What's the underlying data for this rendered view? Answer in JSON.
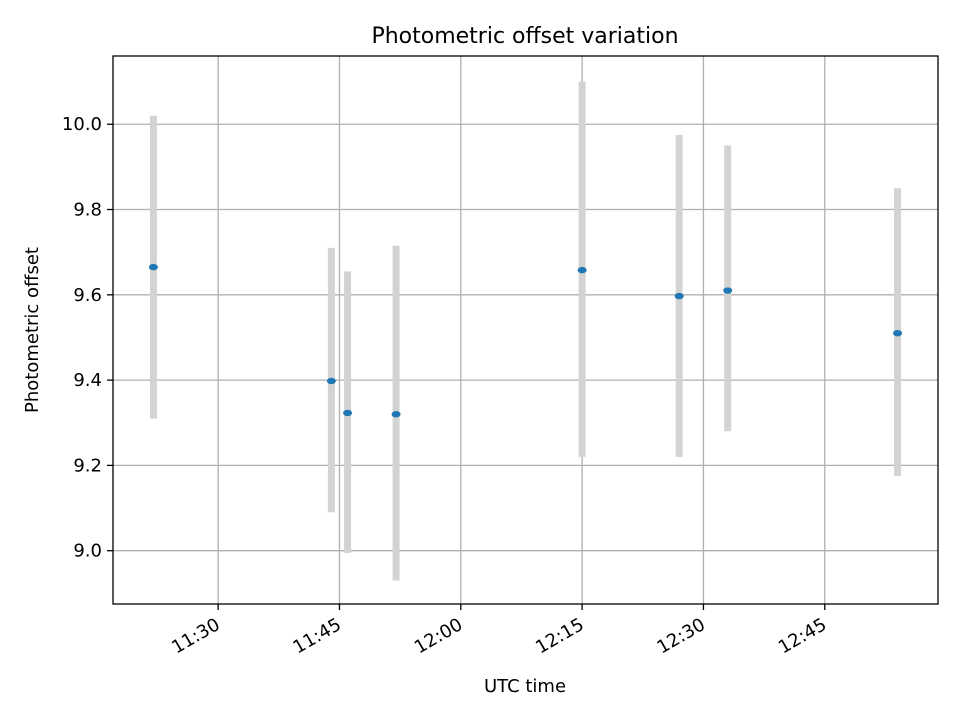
{
  "chart_data": {
    "type": "scatter",
    "title": "Photometric offset variation",
    "xlabel": "UTC time",
    "ylabel": "Photometric offset",
    "x_tick_labels": [
      "11:30",
      "11:45",
      "12:00",
      "12:15",
      "12:30",
      "12:45"
    ],
    "x_ticks": [
      "11:30",
      "11:45",
      "12:00",
      "12:15",
      "12:30",
      "12:45"
    ],
    "xlim": [
      "11:17",
      "12:59"
    ],
    "ylim": [
      8.875,
      10.16
    ],
    "y_ticks": [
      9.0,
      9.2,
      9.4,
      9.6,
      9.8,
      10.0
    ],
    "y_tick_labels": [
      "9.0",
      "9.2",
      "9.4",
      "9.6",
      "9.8",
      "10.0"
    ],
    "grid": true,
    "series": [
      {
        "points": [
          {
            "x": "11:22",
            "y": 9.665,
            "err_low": 9.31,
            "err_high": 10.02
          },
          {
            "x": "11:44",
            "y": 9.398,
            "err_low": 9.09,
            "err_high": 9.71
          },
          {
            "x": "11:46",
            "y": 9.323,
            "err_low": 8.995,
            "err_high": 9.655
          },
          {
            "x": "11:52",
            "y": 9.32,
            "err_low": 8.93,
            "err_high": 9.715
          },
          {
            "x": "12:15",
            "y": 9.658,
            "err_low": 9.22,
            "err_high": 10.1
          },
          {
            "x": "12:27",
            "y": 9.597,
            "err_low": 9.22,
            "err_high": 9.975
          },
          {
            "x": "12:33",
            "y": 9.61,
            "err_low": 9.28,
            "err_high": 9.95
          },
          {
            "x": "12:54",
            "y": 9.51,
            "err_low": 9.175,
            "err_high": 9.85
          }
        ]
      }
    ],
    "colors": {
      "marker": "#1f77b4",
      "errorbar": "#d3d3d3",
      "grid": "#b0b0b0",
      "axes": "#000000"
    }
  }
}
